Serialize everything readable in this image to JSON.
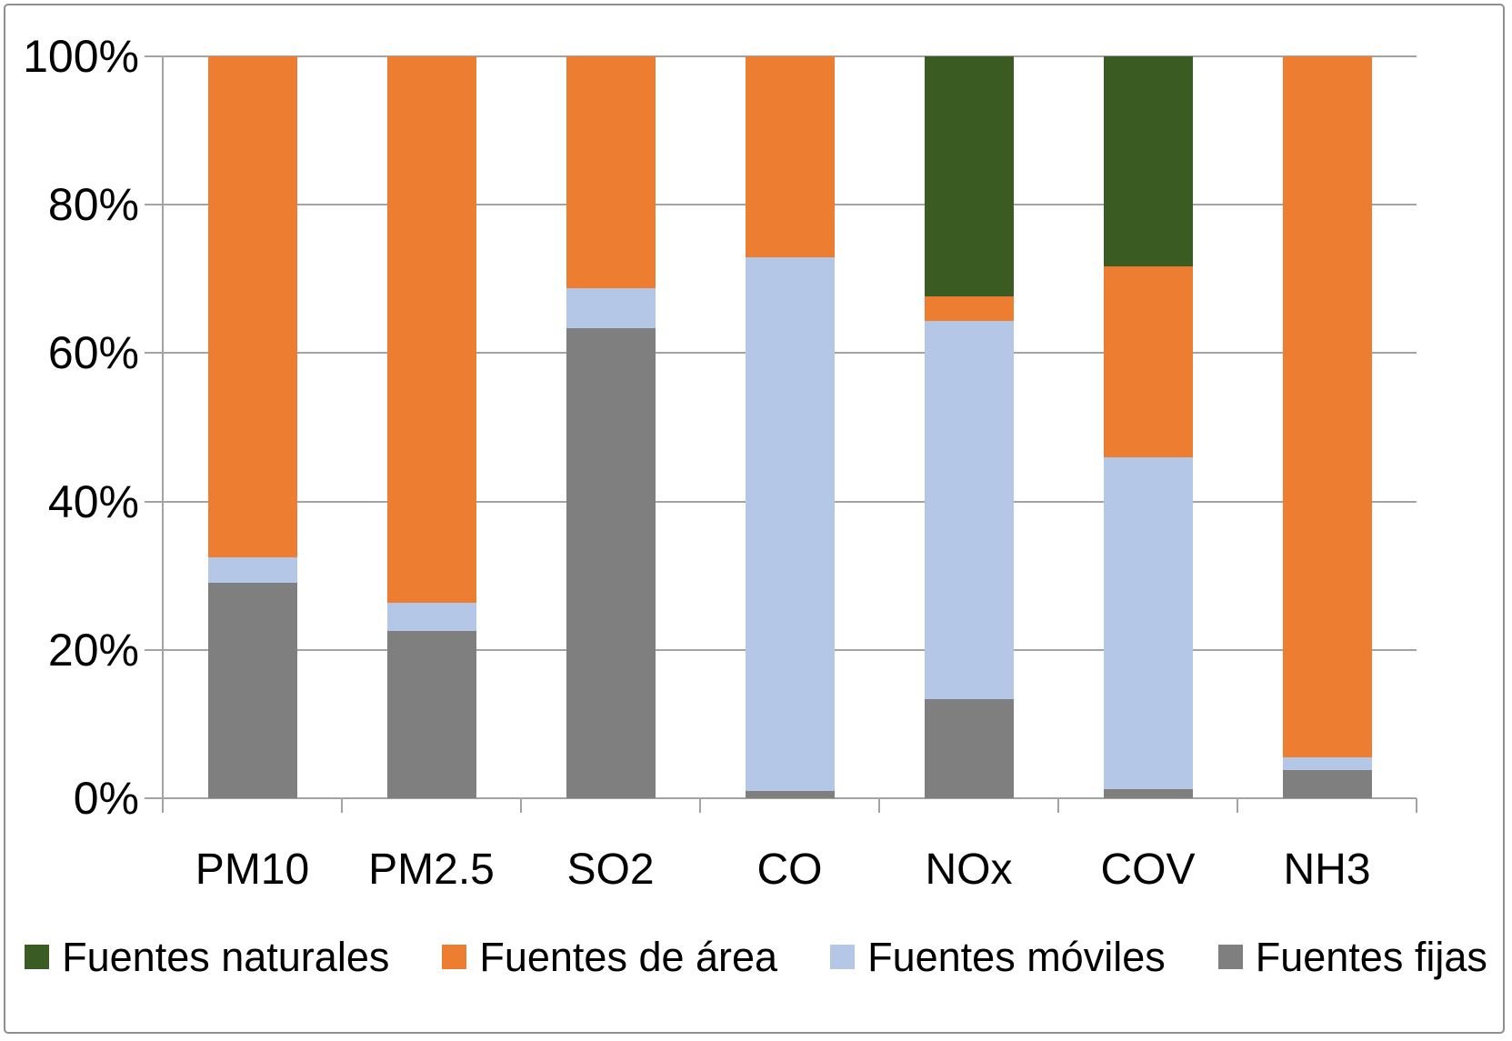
{
  "chart_data": {
    "type": "bar",
    "variant": "stacked-100-percent",
    "title": "",
    "xlabel": "",
    "ylabel": "",
    "ylim": [
      0,
      100
    ],
    "grid": true,
    "y_ticks": [
      {
        "value": 0,
        "label": "0%"
      },
      {
        "value": 20,
        "label": "20%"
      },
      {
        "value": 40,
        "label": "40%"
      },
      {
        "value": 60,
        "label": "60%"
      },
      {
        "value": 80,
        "label": "80%"
      },
      {
        "value": 100,
        "label": "100%"
      }
    ],
    "categories": [
      "PM10",
      "PM2.5",
      "SO2",
      "CO",
      "NOx",
      "COV",
      "NH3"
    ],
    "series": [
      {
        "name": "Fuentes fijas",
        "color": "#7F7F7F",
        "values": [
          29.1,
          22.6,
          63.3,
          1.0,
          13.4,
          1.2,
          3.8
        ]
      },
      {
        "name": "Fuentes móviles",
        "color": "#B4C7E7",
        "values": [
          3.4,
          3.8,
          5.4,
          71.9,
          50.9,
          44.8,
          1.7
        ]
      },
      {
        "name": "Fuentes de área",
        "color": "#ED7D31",
        "values": [
          67.5,
          73.6,
          31.3,
          27.1,
          3.3,
          25.7,
          94.5
        ]
      },
      {
        "name": "Fuentes naturales",
        "color": "#3A5B22",
        "values": [
          0,
          0,
          0,
          0,
          32.4,
          28.3,
          0
        ]
      }
    ],
    "legend_position": "bottom",
    "legend_items": [
      {
        "label": "Fuentes naturales",
        "color": "#3A5B22"
      },
      {
        "label": "Fuentes de área",
        "color": "#ED7D31"
      },
      {
        "label": "Fuentes móviles",
        "color": "#B4C7E7"
      },
      {
        "label": "Fuentes fijas",
        "color": "#7F7F7F"
      }
    ]
  }
}
